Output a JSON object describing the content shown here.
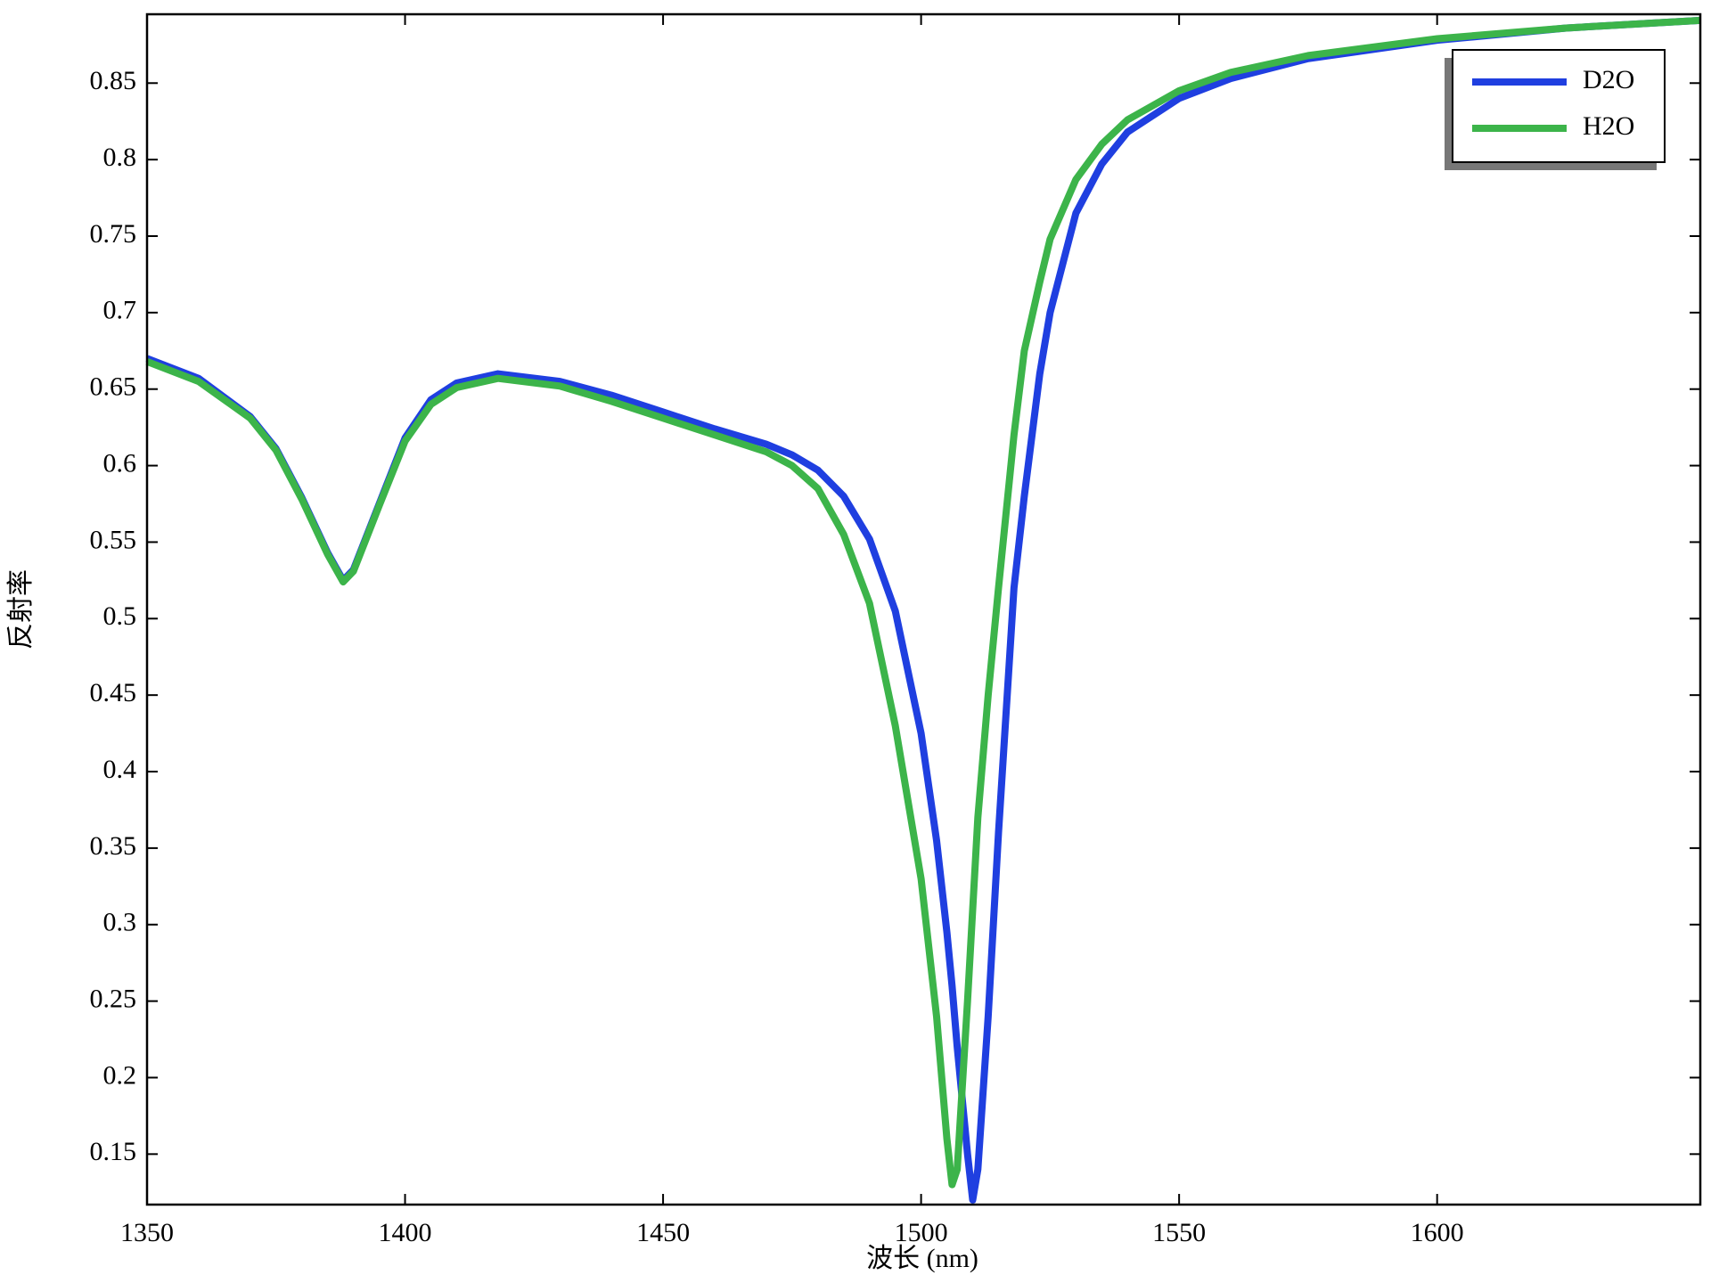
{
  "chart_data": {
    "type": "line",
    "x_label": "波长 (nm)",
    "y_label": "反射率",
    "x": [
      1350,
      1360,
      1370,
      1375,
      1380,
      1385,
      1388,
      1390,
      1395,
      1400,
      1405,
      1410,
      1418,
      1430,
      1440,
      1450,
      1460,
      1470,
      1475,
      1480,
      1485,
      1490,
      1495,
      1500,
      1503,
      1505,
      1506,
      1507,
      1509,
      1510,
      1511,
      1513,
      1515,
      1518,
      1520,
      1523,
      1525,
      1530,
      1535,
      1540,
      1550,
      1560,
      1575,
      1600,
      1625,
      1651
    ],
    "series": [
      {
        "name": "D2O",
        "color": "#1f3fe0",
        "values": [
          0.67,
          0.657,
          0.632,
          0.611,
          0.579,
          0.543,
          0.525,
          0.532,
          0.575,
          0.618,
          0.643,
          0.654,
          0.66,
          0.655,
          0.646,
          0.635,
          0.624,
          0.614,
          0.607,
          0.597,
          0.58,
          0.552,
          0.505,
          0.425,
          0.355,
          0.295,
          0.26,
          0.22,
          0.15,
          0.12,
          0.14,
          0.24,
          0.36,
          0.52,
          0.58,
          0.66,
          0.7,
          0.765,
          0.797,
          0.818,
          0.84,
          0.853,
          0.866,
          0.878,
          0.886,
          0.891
        ]
      },
      {
        "name": "H2O",
        "color": "#3cb44a",
        "values": [
          0.668,
          0.655,
          0.631,
          0.61,
          0.578,
          0.542,
          0.524,
          0.531,
          0.574,
          0.616,
          0.64,
          0.651,
          0.657,
          0.652,
          0.642,
          0.631,
          0.62,
          0.609,
          0.6,
          0.585,
          0.555,
          0.51,
          0.43,
          0.33,
          0.24,
          0.16,
          0.13,
          0.14,
          0.25,
          0.31,
          0.37,
          0.45,
          0.52,
          0.62,
          0.675,
          0.72,
          0.748,
          0.787,
          0.81,
          0.826,
          0.845,
          0.857,
          0.868,
          0.879,
          0.886,
          0.891
        ]
      }
    ],
    "xlim": [
      1350,
      1651
    ],
    "ylim": [
      0.117,
      0.895
    ],
    "xticks": [
      1350,
      1400,
      1450,
      1500,
      1550,
      1600
    ],
    "yticks": [
      0.15,
      0.2,
      0.25,
      0.3,
      0.35,
      0.4,
      0.45,
      0.5,
      0.55,
      0.6,
      0.65,
      0.7,
      0.75,
      0.8,
      0.85
    ],
    "legend": "upper-right"
  }
}
